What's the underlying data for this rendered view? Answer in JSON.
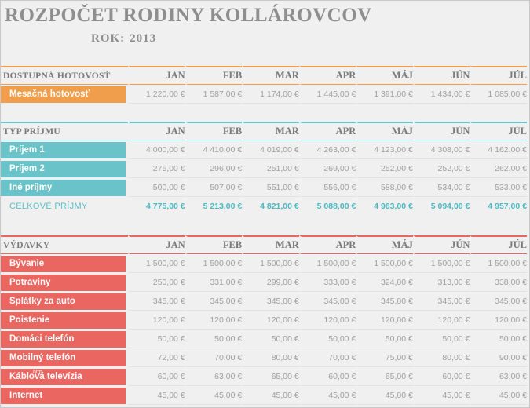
{
  "header": {
    "title": "ROZPOČET RODINY KOLLÁROVCOV",
    "year_label": "ROK:",
    "year_value": "2013"
  },
  "months": [
    "JAN",
    "FEB",
    "MAR",
    "APR",
    "MÁJ",
    "JÚN",
    "JÚL"
  ],
  "colors": {
    "cash": "#f09e4c",
    "income": "#6ac3c8",
    "expenses": "#ea6661",
    "total_text": "#4cb8c2"
  },
  "cash": {
    "header": "DOSTUPNÁ HOTOVOSŤ",
    "rows": [
      {
        "label": "Mesačná hotovosť",
        "values": [
          "1 220,00 €",
          "1 587,00 €",
          "1 174,00 €",
          "1 445,00 €",
          "1 391,00 €",
          "1 434,00 €",
          "1 085,00 €"
        ]
      }
    ]
  },
  "income": {
    "header": "TYP PRÍJMU",
    "rows": [
      {
        "label": "Príjem 1",
        "values": [
          "4 000,00 €",
          "4 410,00 €",
          "4 019,00 €",
          "4 263,00 €",
          "4 123,00 €",
          "4 308,00 €",
          "4 162,00 €"
        ]
      },
      {
        "label": "Príjem 2",
        "values": [
          "275,00 €",
          "296,00 €",
          "251,00 €",
          "269,00 €",
          "252,00 €",
          "252,00 €",
          "262,00 €"
        ]
      },
      {
        "label": "Iné príjmy",
        "values": [
          "500,00 €",
          "507,00 €",
          "551,00 €",
          "556,00 €",
          "588,00 €",
          "534,00 €",
          "533,00 €"
        ]
      }
    ],
    "total": {
      "label": "CELKOVÉ PRÍJMY",
      "values": [
        "4 775,00 €",
        "5 213,00 €",
        "4 821,00 €",
        "5 088,00 €",
        "4 963,00 €",
        "5 094,00 €",
        "4 957,00 €"
      ]
    }
  },
  "expenses": {
    "header": "VÝDAVKY",
    "rows": [
      {
        "label": "Bývanie",
        "values": [
          "1 500,00 €",
          "1 500,00 €",
          "1 500,00 €",
          "1 500,00 €",
          "1 500,00 €",
          "1 500,00 €",
          "1 500,00 €"
        ]
      },
      {
        "label": "Potraviny",
        "values": [
          "250,00 €",
          "331,00 €",
          "299,00 €",
          "333,00 €",
          "324,00 €",
          "313,00 €",
          "338,00 €"
        ]
      },
      {
        "label": "Splátky za auto",
        "values": [
          "345,00 €",
          "345,00 €",
          "345,00 €",
          "345,00 €",
          "345,00 €",
          "345,00 €",
          "345,00 €"
        ]
      },
      {
        "label": "Poistenie",
        "values": [
          "120,00 €",
          "120,00 €",
          "120,00 €",
          "120,00 €",
          "120,00 €",
          "120,00 €",
          "120,00 €"
        ]
      },
      {
        "label": "Domáci telefón",
        "values": [
          "50,00 €",
          "50,00 €",
          "50,00 €",
          "50,00 €",
          "50,00 €",
          "50,00 €",
          "50,00 €"
        ]
      },
      {
        "label": "Mobilný telefón",
        "values": [
          "72,00 €",
          "70,00 €",
          "80,00 €",
          "70,00 €",
          "75,00 €",
          "80,00 €",
          "90,00 €"
        ]
      },
      {
        "label": "Káblová televízia",
        "values": [
          "60,00 €",
          "63,00 €",
          "65,00 €",
          "60,00 €",
          "65,00 €",
          "60,00 €",
          "63,00 €"
        ]
      },
      {
        "label": "Internet",
        "values": [
          "45,00 €",
          "45,00 €",
          "45,00 €",
          "45,00 €",
          "45,00 €",
          "45,00 €",
          "45,00 €"
        ]
      }
    ]
  },
  "overlay_tip": "http"
}
